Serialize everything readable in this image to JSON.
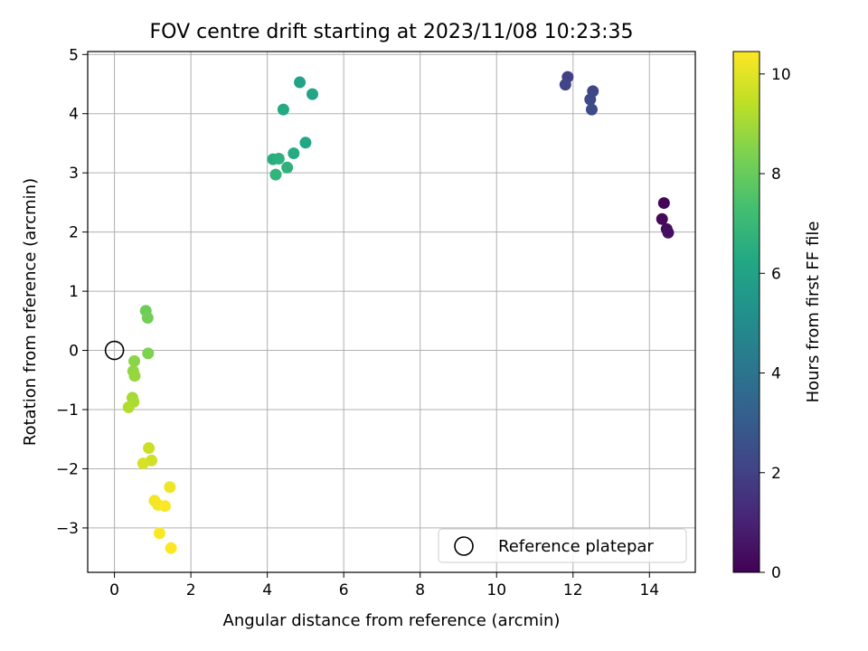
{
  "chart_data": {
    "type": "scatter",
    "title": "FOV centre drift starting at 2023/11/08 10:23:35",
    "xlabel": "Angular distance from reference (arcmin)",
    "ylabel": "Rotation from reference (arcmin)",
    "xlim": [
      -0.7,
      15.2
    ],
    "ylim": [
      -3.75,
      5.05
    ],
    "xticks": [
      0,
      2,
      4,
      6,
      8,
      10,
      12,
      14
    ],
    "yticks": [
      -3,
      -2,
      -1,
      0,
      1,
      2,
      3,
      4,
      5
    ],
    "grid": true,
    "legend": {
      "placement": "lower-right",
      "entries": [
        "Reference platepar"
      ]
    },
    "reference_point": {
      "x": 0,
      "y": 0
    },
    "colorbar": {
      "label": "Hours from first FF file",
      "range": [
        0,
        10.45
      ],
      "ticks": [
        0,
        2,
        4,
        6,
        8,
        10
      ],
      "colormap": "viridis"
    },
    "points": [
      {
        "x": 14.38,
        "y": 2.49,
        "c": 0.1
      },
      {
        "x": 14.33,
        "y": 2.22,
        "c": 0.2
      },
      {
        "x": 14.45,
        "y": 2.05,
        "c": 0.3
      },
      {
        "x": 14.49,
        "y": 1.99,
        "c": 0.4
      },
      {
        "x": 11.86,
        "y": 4.62,
        "c": 2.0
      },
      {
        "x": 11.8,
        "y": 4.49,
        "c": 2.1
      },
      {
        "x": 12.52,
        "y": 4.38,
        "c": 2.2
      },
      {
        "x": 12.45,
        "y": 4.24,
        "c": 2.3
      },
      {
        "x": 12.49,
        "y": 4.07,
        "c": 2.4
      },
      {
        "x": 4.85,
        "y": 4.53,
        "c": 6.0
      },
      {
        "x": 5.18,
        "y": 4.33,
        "c": 6.1
      },
      {
        "x": 4.42,
        "y": 4.07,
        "c": 6.3
      },
      {
        "x": 5.0,
        "y": 3.51,
        "c": 6.2
      },
      {
        "x": 4.69,
        "y": 3.33,
        "c": 6.4
      },
      {
        "x": 4.15,
        "y": 3.23,
        "c": 6.5
      },
      {
        "x": 4.3,
        "y": 3.24,
        "c": 6.6
      },
      {
        "x": 4.52,
        "y": 3.09,
        "c": 6.7
      },
      {
        "x": 4.22,
        "y": 2.97,
        "c": 6.8
      },
      {
        "x": 0.82,
        "y": 0.67,
        "c": 8.1
      },
      {
        "x": 0.87,
        "y": 0.55,
        "c": 8.2
      },
      {
        "x": 0.88,
        "y": -0.05,
        "c": 8.4
      },
      {
        "x": 0.52,
        "y": -0.18,
        "c": 8.6
      },
      {
        "x": 0.49,
        "y": -0.35,
        "c": 8.7
      },
      {
        "x": 0.53,
        "y": -0.43,
        "c": 8.8
      },
      {
        "x": 0.47,
        "y": -0.8,
        "c": 9.0
      },
      {
        "x": 0.5,
        "y": -0.87,
        "c": 9.1
      },
      {
        "x": 0.37,
        "y": -0.96,
        "c": 9.2
      },
      {
        "x": 0.9,
        "y": -1.65,
        "c": 9.6
      },
      {
        "x": 0.97,
        "y": -1.86,
        "c": 9.7
      },
      {
        "x": 0.75,
        "y": -1.91,
        "c": 9.8
      },
      {
        "x": 1.45,
        "y": -2.31,
        "c": 10.2
      },
      {
        "x": 1.05,
        "y": -2.54,
        "c": 10.3
      },
      {
        "x": 1.14,
        "y": -2.61,
        "c": 10.3
      },
      {
        "x": 1.32,
        "y": -2.63,
        "c": 10.4
      },
      {
        "x": 1.18,
        "y": -3.09,
        "c": 10.4
      },
      {
        "x": 1.48,
        "y": -3.34,
        "c": 10.45
      }
    ]
  }
}
